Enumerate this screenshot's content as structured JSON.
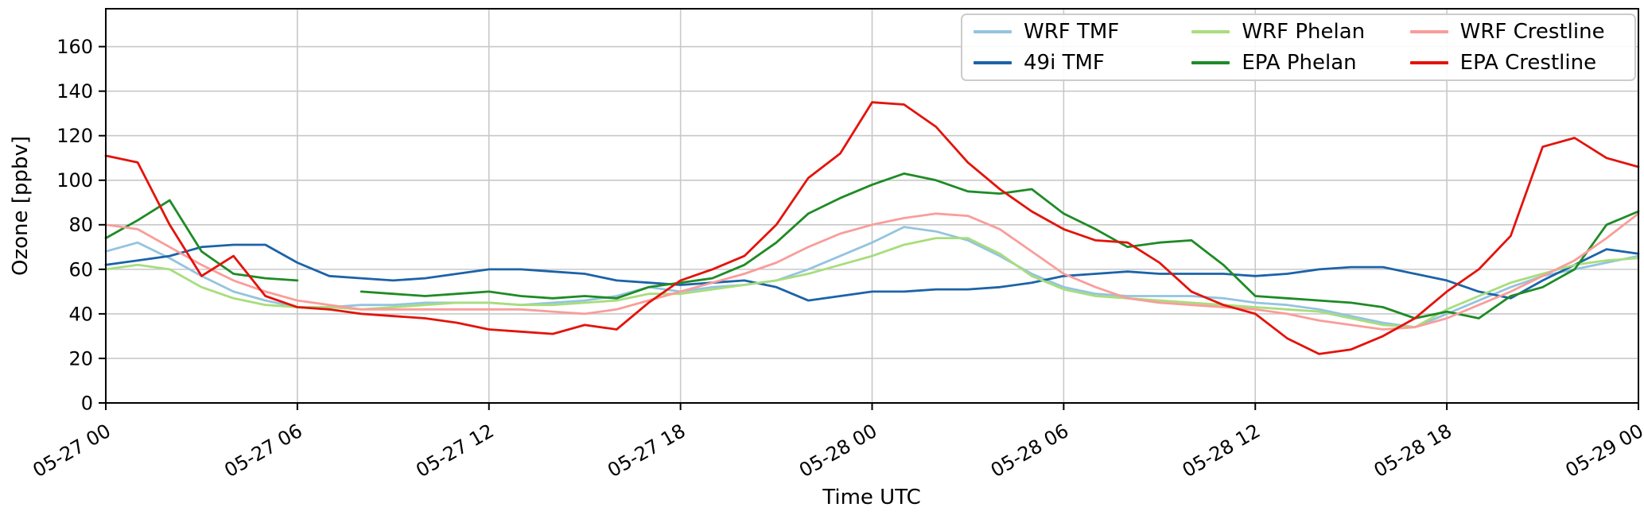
{
  "chart_data": {
    "type": "line",
    "title": "",
    "xlabel": "Time UTC",
    "ylabel": "Ozone [ppbv]",
    "grid": true,
    "legend_position": "upper right",
    "legend_columns": 3,
    "x_interval_hours": 1,
    "xlim_hours": [
      0,
      48
    ],
    "ylim": [
      0,
      177
    ],
    "y_ticks": [
      0,
      20,
      40,
      60,
      80,
      100,
      120,
      140,
      160
    ],
    "x_tick_positions_hours": [
      0,
      6,
      12,
      18,
      24,
      30,
      36,
      42,
      48
    ],
    "x_tick_labels": [
      "05-27 00",
      "05-27 06",
      "05-27 12",
      "05-27 18",
      "05-28 00",
      "05-28 06",
      "05-28 12",
      "05-28 18",
      "05-29 00"
    ],
    "colors": {
      "grid": "#c8c8c8",
      "spine": "#000000",
      "text": "#000000"
    },
    "series": [
      {
        "name": "WRF TMF",
        "color": "#94c4df",
        "values": [
          68,
          72,
          65,
          57,
          50,
          46,
          43,
          43,
          44,
          44,
          45,
          45,
          45,
          44,
          45,
          46,
          48,
          52,
          50,
          52,
          53,
          55,
          60,
          66,
          72,
          79,
          77,
          73,
          66,
          58,
          52,
          49,
          48,
          48,
          48,
          47,
          45,
          44,
          42,
          39,
          36,
          34,
          40,
          46,
          52,
          57,
          60,
          63,
          66
        ]
      },
      {
        "name": "49i TMF",
        "color": "#1b63a8",
        "values": [
          62,
          64,
          66,
          70,
          71,
          71,
          63,
          57,
          56,
          55,
          56,
          58,
          60,
          60,
          59,
          58,
          55,
          54,
          53,
          54,
          55,
          52,
          46,
          48,
          50,
          50,
          51,
          51,
          52,
          54,
          57,
          58,
          59,
          58,
          58,
          58,
          57,
          58,
          60,
          61,
          61,
          58,
          55,
          50,
          47,
          55,
          62,
          69,
          67
        ]
      },
      {
        "name": "WRF Phelan",
        "color": "#a8dd7c",
        "values": [
          60,
          62,
          60,
          52,
          47,
          44,
          43,
          43,
          42,
          43,
          44,
          45,
          45,
          44,
          44,
          45,
          46,
          49,
          49,
          51,
          53,
          55,
          58,
          62,
          66,
          71,
          74,
          74,
          67,
          57,
          51,
          48,
          47,
          46,
          45,
          44,
          43,
          42,
          41,
          38,
          35,
          34,
          42,
          48,
          54,
          58,
          62,
          64,
          65
        ]
      },
      {
        "name": "EPA Phelan",
        "color": "#1e8b25",
        "values": [
          74,
          82,
          91,
          68,
          58,
          56,
          55,
          null,
          50,
          49,
          48,
          49,
          50,
          48,
          47,
          48,
          47,
          52,
          54,
          56,
          62,
          72,
          85,
          92,
          98,
          103,
          100,
          95,
          94,
          96,
          85,
          78,
          70,
          72,
          73,
          62,
          48,
          47,
          46,
          45,
          43,
          38,
          41,
          38,
          48,
          52,
          60,
          80,
          86
        ]
      },
      {
        "name": "WRF Crestline",
        "color": "#f99d99",
        "values": [
          80,
          78,
          70,
          62,
          55,
          50,
          46,
          44,
          42,
          42,
          42,
          42,
          42,
          42,
          41,
          40,
          42,
          46,
          50,
          54,
          58,
          63,
          70,
          76,
          80,
          83,
          85,
          84,
          78,
          68,
          58,
          52,
          47,
          45,
          44,
          43,
          42,
          40,
          37,
          35,
          33,
          34,
          38,
          44,
          50,
          57,
          64,
          74,
          85
        ]
      },
      {
        "name": "EPA Crestline",
        "color": "#e3130b",
        "values": [
          111,
          108,
          80,
          57,
          66,
          48,
          43,
          42,
          40,
          39,
          38,
          36,
          33,
          32,
          31,
          35,
          33,
          45,
          55,
          60,
          66,
          80,
          101,
          112,
          135,
          134,
          124,
          108,
          96,
          86,
          78,
          73,
          72,
          63,
          50,
          44,
          40,
          29,
          22,
          24,
          30,
          38,
          50,
          60,
          75,
          115,
          119,
          110,
          106
        ]
      }
    ]
  }
}
